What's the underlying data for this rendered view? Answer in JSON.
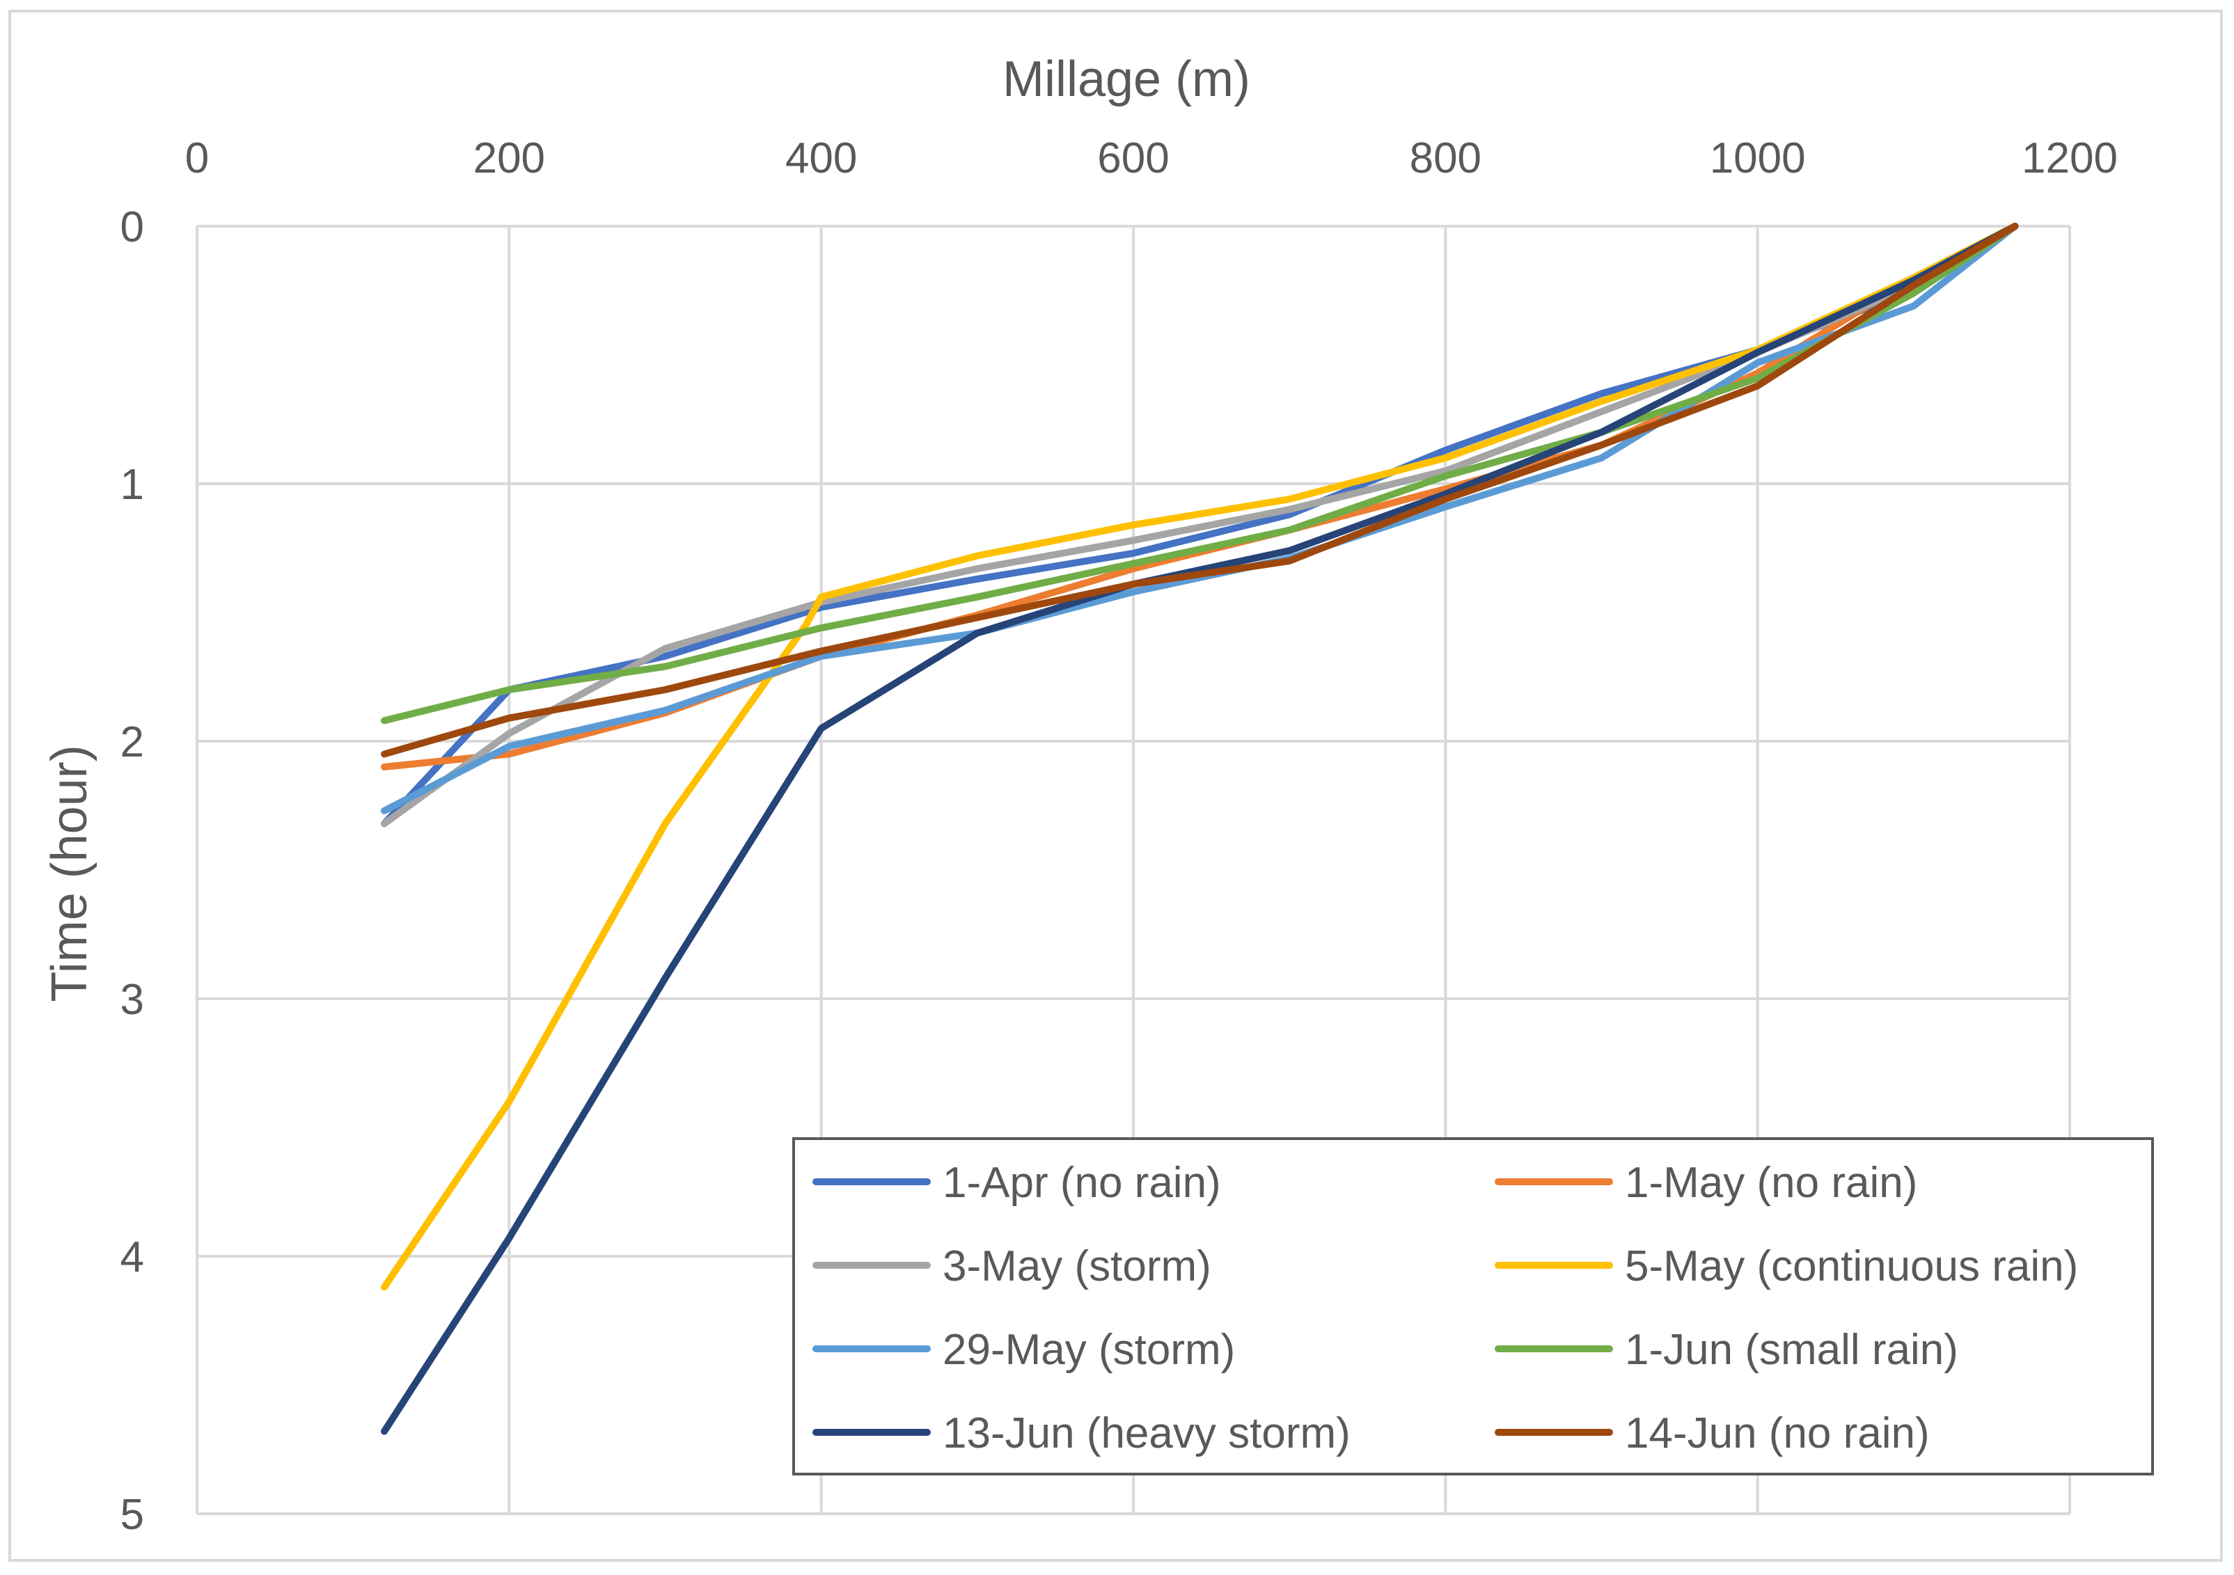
{
  "chart_data": {
    "type": "line",
    "title": "",
    "xlabel": "Millage (m)",
    "ylabel": "Time (hour)",
    "xlim": [
      0,
      1200
    ],
    "ylim": [
      0,
      5
    ],
    "y_inverted": true,
    "x_axis_position": "top",
    "x_ticks": [
      0,
      200,
      400,
      600,
      800,
      1000,
      1200
    ],
    "y_ticks": [
      0,
      1,
      2,
      3,
      4,
      5
    ],
    "x_tick_labels": [
      "0",
      "200",
      "400",
      "600",
      "800",
      "1000",
      "1200"
    ],
    "y_tick_labels": [
      "0",
      "1",
      "2",
      "3",
      "4",
      "5"
    ],
    "grid": true,
    "legend_position": "bottom-right",
    "series": [
      {
        "name": "1-Apr (no rain)",
        "color": "#4472C4",
        "x": [
          120,
          200,
          300,
          400,
          500,
          600,
          700,
          800,
          900,
          1000,
          1100,
          1165
        ],
        "y": [
          2.32,
          1.8,
          1.67,
          1.48,
          1.37,
          1.27,
          1.12,
          0.87,
          0.65,
          0.48,
          0.25,
          0.0
        ]
      },
      {
        "name": "1-May (no rain)",
        "color": "#ED7D31",
        "x": [
          120,
          200,
          300,
          400,
          500,
          600,
          700,
          800,
          900,
          1000,
          1100,
          1165
        ],
        "y": [
          2.1,
          2.05,
          1.89,
          1.67,
          1.51,
          1.33,
          1.18,
          1.02,
          0.85,
          0.57,
          0.2,
          0.0
        ]
      },
      {
        "name": "3-May (storm)",
        "color": "#A5A5A5",
        "x": [
          120,
          200,
          300,
          400,
          500,
          600,
          700,
          800,
          900,
          1000,
          1100,
          1165
        ],
        "y": [
          2.32,
          1.97,
          1.64,
          1.46,
          1.33,
          1.22,
          1.1,
          0.95,
          0.72,
          0.49,
          0.23,
          0.0
        ]
      },
      {
        "name": "5-May (continuous rain)",
        "color": "#FFC000",
        "x": [
          120,
          200,
          300,
          390,
          400,
          500,
          600,
          700,
          800,
          900,
          1000,
          1100,
          1165
        ],
        "y": [
          4.12,
          3.4,
          2.32,
          1.55,
          1.44,
          1.28,
          1.16,
          1.06,
          0.9,
          0.68,
          0.48,
          0.2,
          0.0
        ]
      },
      {
        "name": "29-May (storm)",
        "color": "#5B9BD5",
        "x": [
          120,
          200,
          300,
          400,
          500,
          600,
          700,
          800,
          900,
          1000,
          1100,
          1165
        ],
        "y": [
          2.27,
          2.02,
          1.88,
          1.67,
          1.58,
          1.42,
          1.29,
          1.09,
          0.9,
          0.53,
          0.31,
          0.0
        ]
      },
      {
        "name": "1-Jun (small rain)",
        "color": "#70AD47",
        "x": [
          120,
          200,
          300,
          400,
          500,
          600,
          700,
          800,
          900,
          1000,
          1100,
          1165
        ],
        "y": [
          1.92,
          1.8,
          1.71,
          1.56,
          1.44,
          1.31,
          1.18,
          0.97,
          0.8,
          0.59,
          0.26,
          0.0
        ]
      },
      {
        "name": "13-Jun (heavy storm)",
        "color": "#264478",
        "x": [
          120,
          200,
          300,
          400,
          500,
          600,
          700,
          800,
          900,
          1000,
          1100,
          1165
        ],
        "y": [
          4.68,
          3.93,
          2.92,
          1.95,
          1.58,
          1.39,
          1.26,
          1.04,
          0.8,
          0.49,
          0.21,
          0.0
        ]
      },
      {
        "name": "14-Jun (no rain)",
        "color": "#9E480E",
        "x": [
          120,
          200,
          300,
          400,
          500,
          600,
          700,
          800,
          900,
          1000,
          1100,
          1165
        ],
        "y": [
          2.05,
          1.91,
          1.8,
          1.65,
          1.52,
          1.39,
          1.3,
          1.06,
          0.85,
          0.62,
          0.23,
          0.0
        ]
      }
    ]
  }
}
